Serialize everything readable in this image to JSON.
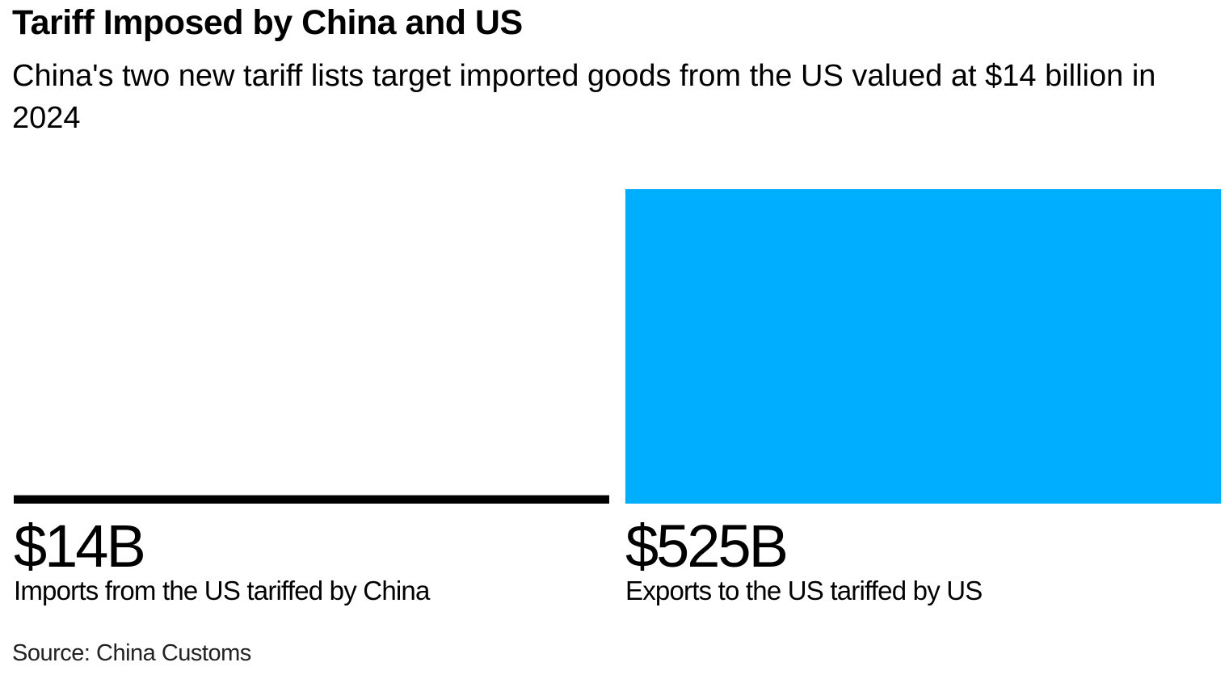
{
  "chart_data": {
    "type": "bar",
    "title": "Tariff Imposed by China and US",
    "subtitle": "China's two new tariff lists target imported goods from the US valued at $14 billion in 2024",
    "categories": [
      "Imports from the US tariffed by China",
      "Exports to the US tariffed by US"
    ],
    "values": [
      14,
      525
    ],
    "value_labels": [
      "$14B",
      "$525B"
    ],
    "colors": [
      "#000000",
      "#00AEFF"
    ],
    "unit": "billion USD",
    "xlabel": "",
    "ylabel": "",
    "ylim": [
      0,
      525
    ],
    "grid": false,
    "source": "Source: China Customs"
  }
}
